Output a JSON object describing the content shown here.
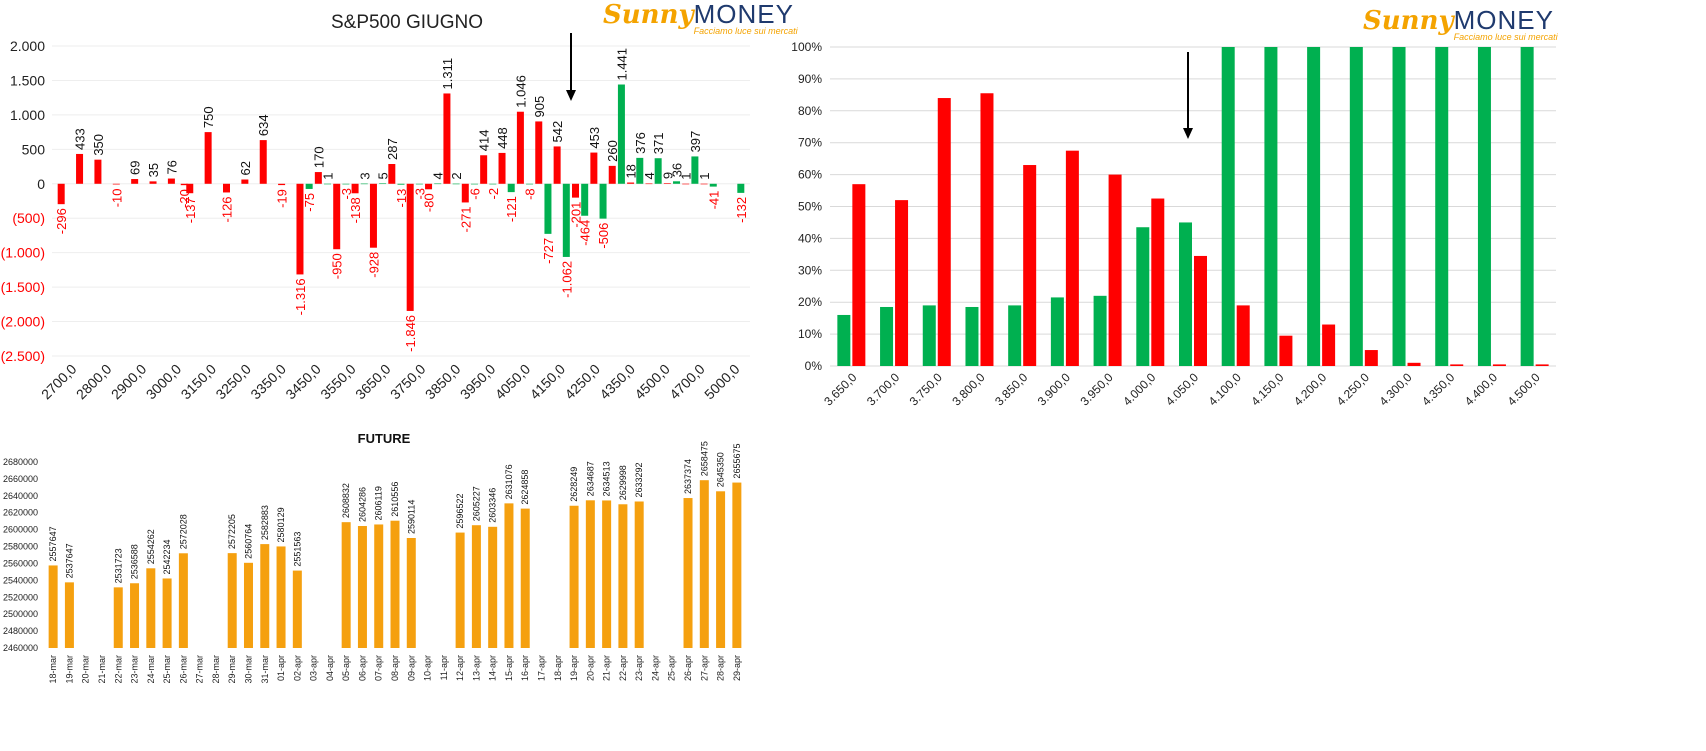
{
  "logo": {
    "sunny": "Sunny",
    "money": "MONEY",
    "tagline": "Facciamo luce sui mercati"
  },
  "colors": {
    "red": "#ff0000",
    "green": "#00b050",
    "orange": "#f5a00f",
    "grid": "#d9d9d9",
    "arrow": "#000000"
  },
  "chart_data": [
    {
      "type": "bar",
      "title": "S&P500 GIUGNO",
      "ylim": [
        -2500,
        2000
      ],
      "yticks": [
        2000,
        1500,
        1000,
        500,
        0,
        -500,
        -1000,
        -1500,
        -2000,
        -2500
      ],
      "ytick_labels": [
        "2.000",
        "1.500",
        "1.000",
        "500",
        "0",
        "(500)",
        "(1.000)",
        "(1.500)",
        "(2.000)",
        "(2.500)"
      ],
      "x_tick_labels": [
        "2700,0",
        "2800,0",
        "2900,0",
        "3000,0",
        "3150,0",
        "3250,0",
        "3350,0",
        "3450,0",
        "3550,0",
        "3650,0",
        "3750,0",
        "3850,0",
        "3950,0",
        "4050,0",
        "4150,0",
        "4250,0",
        "4350,0",
        "4500,0",
        "4700,0",
        "5000,0"
      ],
      "grid": true,
      "arrow_at": 4150,
      "bars": [
        {
          "pos": 0,
          "color": "red",
          "value": -296,
          "label": "-296"
        },
        {
          "pos": 1,
          "color": "red",
          "value": 433,
          "label": "433"
        },
        {
          "pos": 2,
          "color": "red",
          "value": 350,
          "label": "350"
        },
        {
          "pos": 3,
          "color": "red",
          "value": -10,
          "label": "-10"
        },
        {
          "pos": 4,
          "color": "red",
          "value": 69,
          "label": "69"
        },
        {
          "pos": 5,
          "color": "red",
          "value": 35,
          "label": "35"
        },
        {
          "pos": 6,
          "color": "red",
          "value": 76,
          "label": "76"
        },
        {
          "pos": 6.7,
          "color": "red",
          "value": -20,
          "label": "-20"
        },
        {
          "pos": 7,
          "color": "red",
          "value": -137,
          "label": "-137"
        },
        {
          "pos": 8,
          "color": "red",
          "value": 750,
          "label": "750"
        },
        {
          "pos": 9,
          "color": "red",
          "value": -126,
          "label": "-126"
        },
        {
          "pos": 10,
          "color": "red",
          "value": 62,
          "label": "62"
        },
        {
          "pos": 11,
          "color": "red",
          "value": 634,
          "label": "634"
        },
        {
          "pos": 12,
          "color": "red",
          "value": -19,
          "label": "-19"
        },
        {
          "pos": 13,
          "color": "red",
          "value": -1316,
          "label": "-1.316"
        },
        {
          "pos": 13.5,
          "color": "green",
          "value": -75,
          "label": "-75"
        },
        {
          "pos": 14,
          "color": "red",
          "value": 170,
          "label": "170"
        },
        {
          "pos": 14.5,
          "color": "green",
          "value": 1,
          "label": "1"
        },
        {
          "pos": 15,
          "color": "red",
          "value": -950,
          "label": "-950"
        },
        {
          "pos": 15.5,
          "color": "green",
          "value": -3,
          "label": "-3"
        },
        {
          "pos": 16,
          "color": "red",
          "value": -138,
          "label": "-138"
        },
        {
          "pos": 16.5,
          "color": "green",
          "value": 3,
          "label": "3"
        },
        {
          "pos": 17,
          "color": "red",
          "value": -928,
          "label": "-928"
        },
        {
          "pos": 17.5,
          "color": "green",
          "value": 5,
          "label": "5"
        },
        {
          "pos": 18,
          "color": "red",
          "value": 287,
          "label": "287"
        },
        {
          "pos": 18.5,
          "color": "green",
          "value": -13,
          "label": "-13"
        },
        {
          "pos": 19,
          "color": "red",
          "value": -1846,
          "label": "-1.846"
        },
        {
          "pos": 19.5,
          "color": "green",
          "value": -3,
          "label": "-3"
        },
        {
          "pos": 20,
          "color": "red",
          "value": -80,
          "label": "-80"
        },
        {
          "pos": 20.5,
          "color": "green",
          "value": 4,
          "label": "4"
        },
        {
          "pos": 21,
          "color": "red",
          "value": 1311,
          "label": "1.311"
        },
        {
          "pos": 21.5,
          "color": "green",
          "value": 2,
          "label": "2"
        },
        {
          "pos": 22,
          "color": "red",
          "value": -271,
          "label": "-271"
        },
        {
          "pos": 22.5,
          "color": "green",
          "value": -6,
          "label": "-6"
        },
        {
          "pos": 23,
          "color": "red",
          "value": 414,
          "label": "414"
        },
        {
          "pos": 23.5,
          "color": "green",
          "value": -2,
          "label": "-2"
        },
        {
          "pos": 24,
          "color": "red",
          "value": 448,
          "label": "448"
        },
        {
          "pos": 24.5,
          "color": "green",
          "value": -121,
          "label": "-121"
        },
        {
          "pos": 25,
          "color": "red",
          "value": 1046,
          "label": "1.046"
        },
        {
          "pos": 25.5,
          "color": "green",
          "value": -8,
          "label": "-8"
        },
        {
          "pos": 26,
          "color": "red",
          "value": 905,
          "label": "905"
        },
        {
          "pos": 26.5,
          "color": "green",
          "value": -727,
          "label": "-727"
        },
        {
          "pos": 27,
          "color": "red",
          "value": 542,
          "label": "542"
        },
        {
          "pos": 27.5,
          "color": "green",
          "value": -1062,
          "label": "-1.062"
        },
        {
          "pos": 28,
          "color": "red",
          "value": -201,
          "label": "-201"
        },
        {
          "pos": 28.5,
          "color": "green",
          "value": -464,
          "label": "-464"
        },
        {
          "pos": 29,
          "color": "red",
          "value": 453,
          "label": "453"
        },
        {
          "pos": 29.5,
          "color": "green",
          "value": -506,
          "label": "-506"
        },
        {
          "pos": 30,
          "color": "red",
          "value": 260,
          "label": "260"
        },
        {
          "pos": 30.5,
          "color": "green",
          "value": 1441,
          "label": "1.441"
        },
        {
          "pos": 31,
          "color": "red",
          "value": 18,
          "label": "18"
        },
        {
          "pos": 31.5,
          "color": "green",
          "value": 376,
          "label": "376"
        },
        {
          "pos": 32,
          "color": "red",
          "value": 4,
          "label": "4"
        },
        {
          "pos": 32.5,
          "color": "green",
          "value": 371,
          "label": "371"
        },
        {
          "pos": 33,
          "color": "red",
          "value": 9,
          "label": "9"
        },
        {
          "pos": 33.5,
          "color": "green",
          "value": 36,
          "label": "36"
        },
        {
          "pos": 34,
          "color": "red",
          "value": 1,
          "label": "1"
        },
        {
          "pos": 34.5,
          "color": "green",
          "value": 397,
          "label": "397"
        },
        {
          "pos": 35,
          "color": "red",
          "value": 1,
          "label": "1"
        },
        {
          "pos": 35.5,
          "color": "green",
          "value": -41,
          "label": "-41"
        },
        {
          "pos": 37,
          "color": "green",
          "value": -132,
          "label": "-132"
        }
      ]
    },
    {
      "type": "bar",
      "categories": [
        "3.650,0",
        "3.700,0",
        "3.750,0",
        "3.800,0",
        "3.850,0",
        "3.900,0",
        "3.950,0",
        "4.000,0",
        "4.050,0",
        "4.100,0",
        "4.150,0",
        "4.200,0",
        "4.250,0",
        "4.300,0",
        "4.350,0",
        "4.400,0",
        "4.500,0"
      ],
      "series": [
        {
          "color": "green",
          "values": [
            16,
            18.5,
            19,
            18.5,
            19,
            21.5,
            22,
            43.5,
            45,
            100,
            100,
            100,
            100,
            100,
            100,
            100,
            100
          ]
        },
        {
          "color": "red",
          "values": [
            57,
            52,
            84,
            85.5,
            63,
            67.5,
            60,
            52.5,
            34.5,
            19,
            9.5,
            13,
            5,
            1,
            0.5,
            0.5,
            0.5
          ]
        }
      ],
      "ylim": [
        0,
        100
      ],
      "yticks": [
        0,
        10,
        20,
        30,
        40,
        50,
        60,
        70,
        80,
        90,
        100
      ],
      "ytick_labels": [
        "0%",
        "10%",
        "20%",
        "30%",
        "40%",
        "50%",
        "60%",
        "70%",
        "80%",
        "90%",
        "100%"
      ],
      "grid": true,
      "arrow_at": "4.050,0"
    },
    {
      "type": "bar",
      "title": "FUTURE",
      "categories": [
        "18-mar",
        "19-mar",
        "20-mar",
        "21-mar",
        "22-mar",
        "23-mar",
        "24-mar",
        "25-mar",
        "26-mar",
        "27-mar",
        "28-mar",
        "29-mar",
        "30-mar",
        "31-mar",
        "01-apr",
        "02-apr",
        "03-apr",
        "04-apr",
        "05-apr",
        "06-apr",
        "07-apr",
        "08-apr",
        "09-apr",
        "10-apr",
        "11-apr",
        "12-apr",
        "13-apr",
        "14-apr",
        "15-apr",
        "16-apr",
        "17-apr",
        "18-apr",
        "19-apr",
        "20-apr",
        "21-apr",
        "22-apr",
        "23-apr",
        "24-apr",
        "25-apr",
        "26-apr",
        "27-apr",
        "28-apr",
        "29-apr"
      ],
      "values": [
        2557647,
        2537647,
        null,
        null,
        2531723,
        2536588,
        2554262,
        2542234,
        2572028,
        null,
        null,
        2572205,
        2560764,
        2582883,
        2580129,
        2551563,
        null,
        null,
        2608832,
        2604286,
        2606119,
        2610556,
        2590114,
        null,
        null,
        2596522,
        2605227,
        2603346,
        2631076,
        2624858,
        null,
        null,
        2628249,
        2634687,
        2634513,
        2629998,
        2633292,
        null,
        null,
        2637374,
        2658475,
        2645350,
        2655675
      ],
      "ylim": [
        2460000,
        2680000
      ],
      "yticks": [
        2460000,
        2480000,
        2500000,
        2520000,
        2540000,
        2560000,
        2580000,
        2600000,
        2620000,
        2640000,
        2660000,
        2680000
      ],
      "ytick_labels": [
        "2460000",
        "2480000",
        "2500000",
        "2520000",
        "2540000",
        "2560000",
        "2580000",
        "2600000",
        "2620000",
        "2640000",
        "2660000",
        "2680000"
      ],
      "grid": false
    }
  ]
}
